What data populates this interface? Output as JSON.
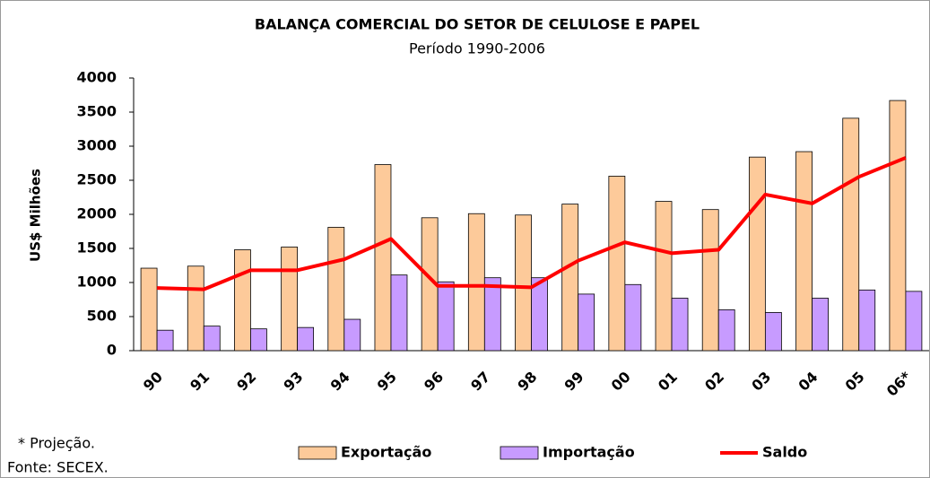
{
  "chart_data": {
    "type": "bar",
    "title": "BALANÇA COMERCIAL DO SETOR DE CELULOSE E PAPEL",
    "subtitle": "Período 1990-2006",
    "y_label": "US$ Milhões",
    "categories": [
      "90",
      "91",
      "92",
      "93",
      "94",
      "95",
      "96",
      "97",
      "98",
      "99",
      "00",
      "01",
      "02",
      "03",
      "04",
      "05",
      "06*"
    ],
    "series": [
      {
        "name": "Exportação",
        "type": "bar",
        "color": "#fdca9a",
        "values": [
          1210,
          1240,
          1480,
          1520,
          1810,
          2730,
          1950,
          2010,
          1990,
          2150,
          2560,
          2190,
          2070,
          2840,
          2920,
          3410,
          3670
        ]
      },
      {
        "name": "Importação",
        "type": "bar",
        "color": "#c79bff",
        "values": [
          300,
          360,
          320,
          340,
          460,
          1110,
          1010,
          1070,
          1070,
          830,
          970,
          770,
          600,
          560,
          770,
          890,
          870
        ]
      },
      {
        "name": "Saldo",
        "type": "line",
        "color": "#ff0000",
        "values": [
          920,
          900,
          1180,
          1180,
          1340,
          1640,
          950,
          950,
          930,
          1320,
          1590,
          1430,
          1480,
          2290,
          2160,
          2550,
          2830
        ]
      }
    ],
    "ylim": [
      0,
      4000
    ],
    "yticks": [
      0,
      500,
      1000,
      1500,
      2000,
      2500,
      3000,
      3500,
      4000
    ],
    "grid": false,
    "legend": "bottom",
    "notes": [
      "* Projeção.",
      "Fonte: SECEX."
    ]
  }
}
